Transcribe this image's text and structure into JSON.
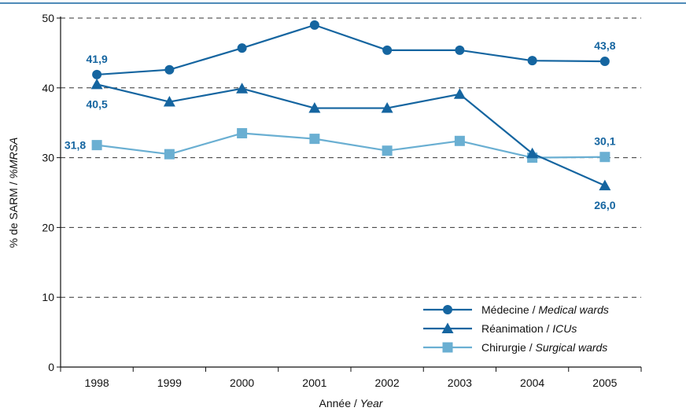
{
  "chart_data": {
    "type": "line",
    "title": "",
    "xlabel": {
      "main": "Année",
      "separator": " / ",
      "translation": "Year"
    },
    "ylabel": {
      "main": "% de SARM",
      "separator": " / ",
      "translation": "%MRSA"
    },
    "categories": [
      "1998",
      "1999",
      "2000",
      "2001",
      "2002",
      "2003",
      "2004",
      "2005"
    ],
    "ylim": [
      0,
      50
    ],
    "yticks": [
      "0",
      "10",
      "20",
      "30",
      "40",
      "50"
    ],
    "grid": true,
    "legend_position": "bottom-right",
    "series": [
      {
        "name": "Médecine",
        "name_translation": "Medical wards",
        "marker": "circle",
        "color": "#1565a0",
        "values": [
          41.9,
          42.6,
          45.7,
          49.0,
          45.4,
          45.4,
          43.9,
          43.8
        ],
        "labels": [
          {
            "index": 0,
            "text": "41,9",
            "position": "above"
          },
          {
            "index": 7,
            "text": "43,8",
            "position": "above"
          }
        ]
      },
      {
        "name": "Réanimation",
        "name_translation": "ICUs",
        "marker": "triangle",
        "color": "#1565a0",
        "values": [
          40.5,
          38.0,
          39.9,
          37.1,
          37.1,
          39.1,
          30.6,
          26.0
        ],
        "labels": [
          {
            "index": 0,
            "text": "40,5",
            "position": "below"
          },
          {
            "index": 7,
            "text": "26,0",
            "position": "below"
          }
        ]
      },
      {
        "name": "Chirurgie",
        "name_translation": "Surgical wards",
        "marker": "square",
        "color": "#6aafd2",
        "values": [
          31.8,
          30.5,
          33.5,
          32.7,
          31.0,
          32.4,
          30.0,
          30.1
        ],
        "labels": [
          {
            "index": 0,
            "text": "31,8",
            "position": "left"
          },
          {
            "index": 7,
            "text": "30,1",
            "position": "above"
          }
        ]
      }
    ]
  },
  "colors": {
    "top_rule": "#1565a0",
    "axis": "#111111",
    "grid": "#333333",
    "label_dark": "#1565a0"
  }
}
